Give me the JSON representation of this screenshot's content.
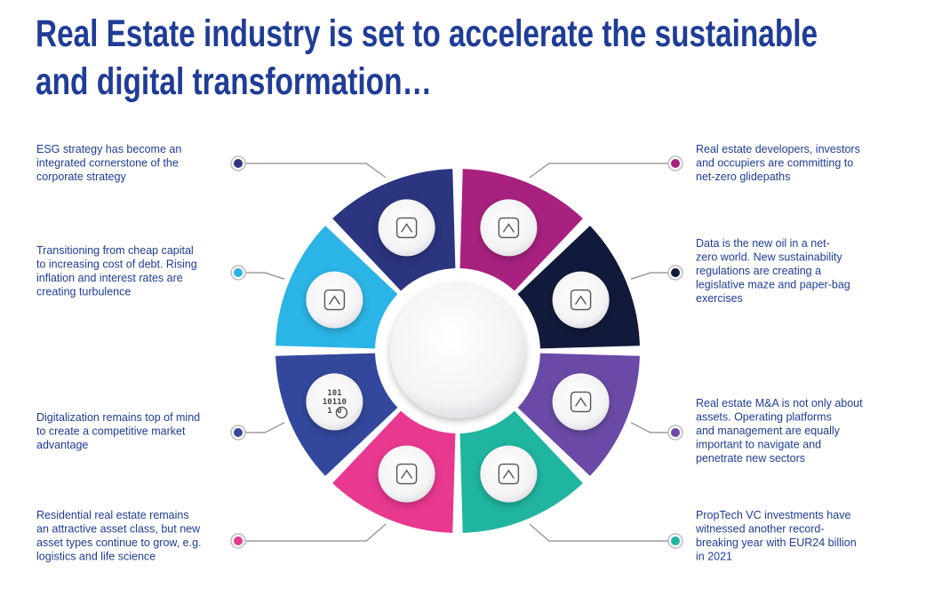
{
  "title": [
    "Real Estate industry is set to accelerate the sustainable",
    "and digital transformation…"
  ],
  "segments": [
    {
      "side": "left",
      "color": "#2b3580",
      "lines": [
        "ESG strategy has become an",
        "integrated cornerstone of the",
        "corporate strategy"
      ]
    },
    {
      "side": "left",
      "color": "#2bb4e6",
      "lines": [
        "Transitioning from cheap capital",
        "to increasing cost of debt. Rising",
        "inflation and interest rates are",
        "creating turbulence"
      ]
    },
    {
      "side": "left",
      "color": "#33489c",
      "lines": [
        "Digitalization remains top of mind",
        "to create a competitive market",
        "advantage"
      ]
    },
    {
      "side": "left",
      "color": "#e8388f",
      "lines": [
        "Residential real estate remains",
        "an attractive asset class, but new",
        "asset types continue to grow, e.g.",
        "logistics and life science"
      ]
    },
    {
      "side": "right",
      "color": "#a8217f",
      "lines": [
        "Real estate developers, investors",
        "and occupiers are committing to",
        "net-zero glidepaths"
      ]
    },
    {
      "side": "right",
      "color": "#111a3a",
      "lines": [
        "Data is the new oil in a net-",
        "zero world. New sustainability",
        "regulations are creating a",
        "legislative maze and paper-bag",
        "exercises"
      ]
    },
    {
      "side": "right",
      "color": "#6a4aa6",
      "lines": [
        "Real estate M&A is not only about",
        "assets. Operating platforms",
        "and management are equally",
        "important to navigate and",
        "penetrate new sectors"
      ]
    },
    {
      "side": "right",
      "color": "#1fb5a0",
      "lines": [
        "PropTech VC investments have",
        "witnessed another record-",
        "breaking year with EUR24 billion",
        "in 2021"
      ]
    }
  ],
  "icon_text": [
    "101",
    "10110",
    "1 0"
  ]
}
